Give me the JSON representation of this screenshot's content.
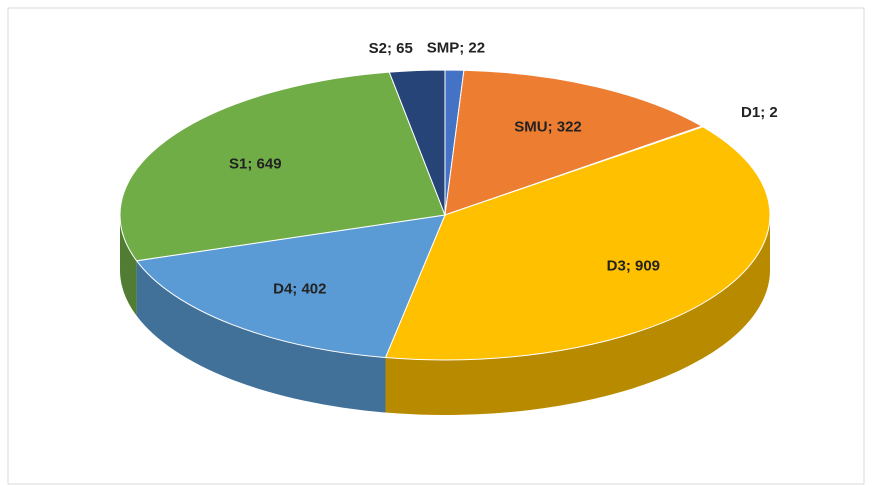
{
  "chart_data": {
    "type": "pie3d",
    "values": [
      22,
      322,
      2,
      909,
      402,
      649,
      65
    ],
    "value_labels": [
      "SMP; 22",
      "SMU; 322",
      "D1; 2",
      "D3; 909",
      "D4; 402",
      "S1; 649",
      "S2; 65"
    ],
    "colors": [
      "#4472c4",
      "#ed7d31",
      "#a5a5a5",
      "#ffc000",
      "#5b9bd5",
      "#70ad47",
      "#264478"
    ]
  }
}
